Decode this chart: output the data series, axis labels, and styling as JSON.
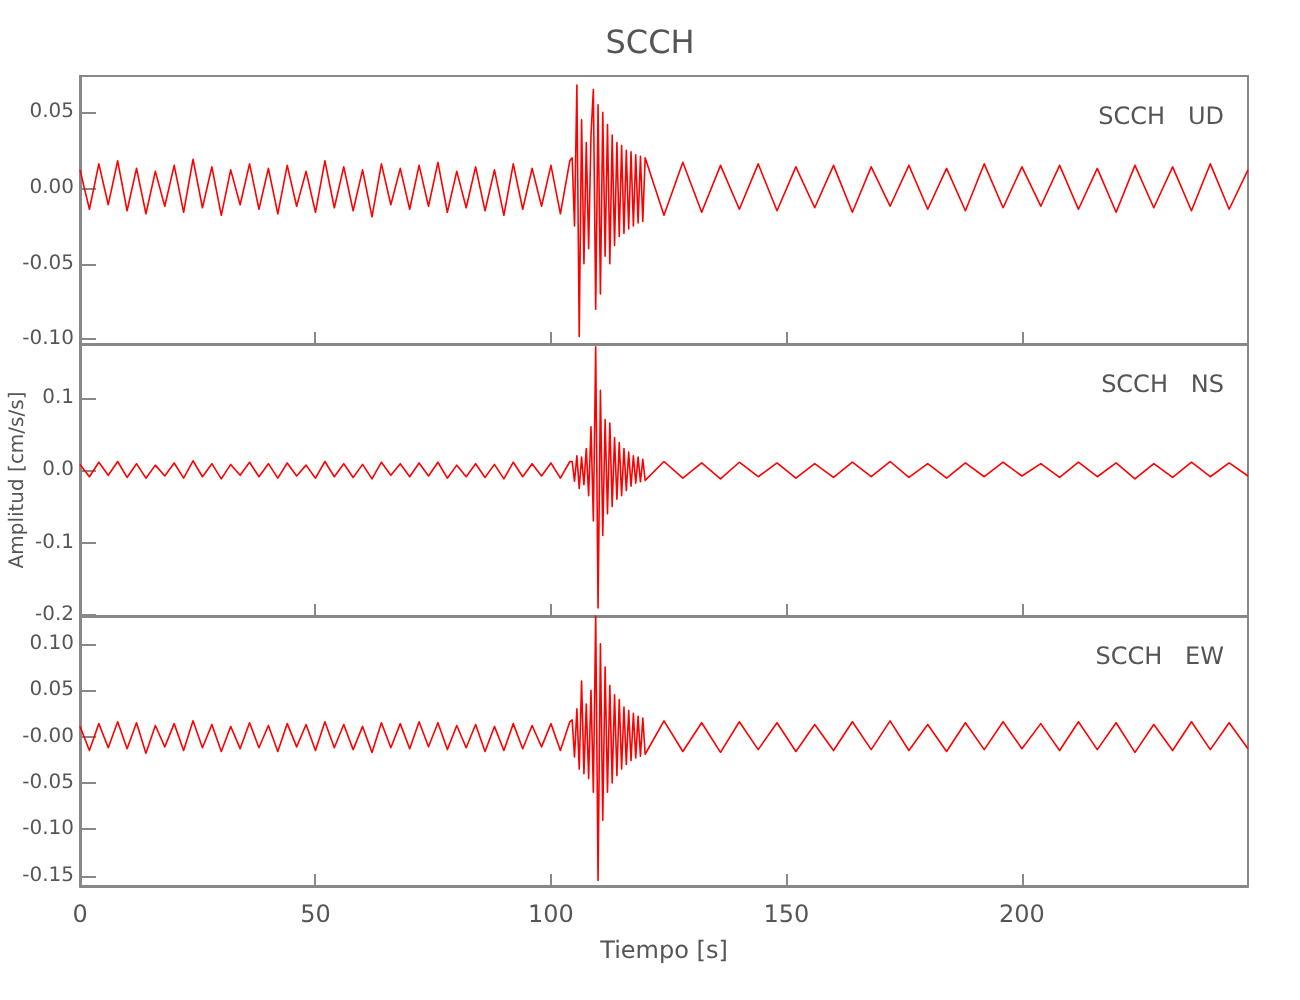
{
  "chart_data": [
    {
      "type": "line",
      "title": "SCCH",
      "annotations": [
        "SCCH   UD"
      ],
      "tick_labels": "y",
      "marker": "none",
      "grid": false,
      "xlim": [
        0,
        248
      ],
      "xticks": [
        0,
        50,
        100,
        150,
        200
      ],
      "ylim": [
        -0.103,
        0.074
      ],
      "yticks": [
        {
          "value": 0.05,
          "label": "0.05"
        },
        {
          "value": 0,
          "label": "0.00"
        },
        {
          "value": -0.05,
          "label": "-0.05"
        },
        {
          "value": -0.1,
          "label": "-0.10"
        }
      ],
      "x": [
        0,
        2,
        4,
        6,
        8,
        10,
        12,
        14,
        16,
        18,
        20,
        22,
        24,
        26,
        28,
        30,
        32,
        34,
        36,
        38,
        40,
        42,
        44,
        46,
        48,
        50,
        52,
        54,
        56,
        58,
        60,
        62,
        64,
        66,
        68,
        70,
        72,
        74,
        76,
        78,
        80,
        82,
        84,
        86,
        88,
        90,
        92,
        94,
        96,
        98,
        100,
        102,
        104,
        104.5,
        105,
        105.5,
        106,
        106.5,
        107,
        107.5,
        108,
        108.5,
        109,
        109.5,
        110,
        110.5,
        111,
        111.5,
        112,
        112.5,
        113,
        113.5,
        114,
        114.5,
        115,
        115.5,
        116,
        116.5,
        117,
        117.5,
        118,
        118.5,
        119,
        119.5,
        120,
        124,
        128,
        132,
        136,
        140,
        144,
        148,
        152,
        156,
        160,
        164,
        168,
        172,
        176,
        180,
        184,
        188,
        192,
        196,
        200,
        204,
        208,
        212,
        216,
        220,
        224,
        228,
        232,
        236,
        240,
        244,
        248
      ],
      "series": [
        {
          "color": "#ff0000",
          "values": [
            0.012,
            -0.014,
            0.016,
            -0.011,
            0.018,
            -0.015,
            0.013,
            -0.017,
            0.011,
            -0.012,
            0.015,
            -0.016,
            0.019,
            -0.013,
            0.014,
            -0.018,
            0.012,
            -0.011,
            0.016,
            -0.014,
            0.013,
            -0.017,
            0.015,
            -0.012,
            0.011,
            -0.016,
            0.018,
            -0.013,
            0.014,
            -0.015,
            0.012,
            -0.019,
            0.016,
            -0.011,
            0.013,
            -0.014,
            0.015,
            -0.012,
            0.017,
            -0.016,
            0.011,
            -0.013,
            0.014,
            -0.015,
            0.012,
            -0.018,
            0.016,
            -0.014,
            0.013,
            -0.012,
            0.015,
            -0.017,
            0.018,
            0.02,
            -0.025,
            0.068,
            -0.098,
            0.045,
            -0.05,
            0.03,
            -0.04,
            0.035,
            0.065,
            -0.08,
            0.055,
            -0.07,
            0.05,
            -0.045,
            0.042,
            -0.05,
            0.035,
            -0.038,
            0.03,
            -0.032,
            0.028,
            -0.03,
            0.025,
            -0.027,
            0.024,
            -0.025,
            0.022,
            -0.023,
            0.021,
            -0.022,
            0.02,
            -0.018,
            0.017,
            -0.016,
            0.015,
            -0.014,
            0.016,
            -0.015,
            0.014,
            -0.013,
            0.015,
            -0.016,
            0.014,
            -0.012,
            0.015,
            -0.014,
            0.013,
            -0.015,
            0.016,
            -0.013,
            0.014,
            -0.012,
            0.015,
            -0.014,
            0.013,
            -0.016,
            0.015,
            -0.013,
            0.014,
            -0.015,
            0.016,
            -0.014,
            0.012
          ]
        }
      ]
    },
    {
      "type": "line",
      "ylabel": "Amplitud [cm/s/s]",
      "annotations": [
        "SCCH   NS"
      ],
      "tick_labels": "y",
      "marker": "none",
      "grid": false,
      "xlim": [
        0,
        248
      ],
      "xticks": [
        0,
        50,
        100,
        150,
        200
      ],
      "ylim": [
        -0.201,
        0.174
      ],
      "yticks": [
        {
          "value": 0.1,
          "label": "0.1"
        },
        {
          "value": 0,
          "label": "0.0"
        },
        {
          "value": -0.1,
          "label": "-0.1"
        },
        {
          "value": -0.2,
          "label": "-0.2"
        }
      ],
      "x": [
        0,
        2,
        4,
        6,
        8,
        10,
        12,
        14,
        16,
        18,
        20,
        22,
        24,
        26,
        28,
        30,
        32,
        34,
        36,
        38,
        40,
        42,
        44,
        46,
        48,
        50,
        52,
        54,
        56,
        58,
        60,
        62,
        64,
        66,
        68,
        70,
        72,
        74,
        76,
        78,
        80,
        82,
        84,
        86,
        88,
        90,
        92,
        94,
        96,
        98,
        100,
        102,
        104,
        104.5,
        105,
        105.5,
        106,
        106.5,
        107,
        107.5,
        108,
        108.5,
        109,
        109.5,
        110,
        110.5,
        111,
        111.5,
        112,
        112.5,
        113,
        113.5,
        114,
        114.5,
        115,
        115.5,
        116,
        116.5,
        117,
        117.5,
        118,
        118.5,
        119,
        119.5,
        120,
        124,
        128,
        132,
        136,
        140,
        144,
        148,
        152,
        156,
        160,
        164,
        168,
        172,
        176,
        180,
        184,
        188,
        192,
        196,
        200,
        204,
        208,
        212,
        216,
        220,
        224,
        228,
        232,
        236,
        240,
        244,
        248
      ],
      "series": [
        {
          "color": "#ff0000",
          "values": [
            0.008,
            -0.009,
            0.011,
            -0.007,
            0.012,
            -0.01,
            0.009,
            -0.011,
            0.007,
            -0.008,
            0.01,
            -0.011,
            0.013,
            -0.009,
            0.009,
            -0.012,
            0.008,
            -0.007,
            0.011,
            -0.009,
            0.009,
            -0.011,
            0.01,
            -0.008,
            0.007,
            -0.011,
            0.012,
            -0.009,
            0.009,
            -0.01,
            0.008,
            -0.012,
            0.011,
            -0.007,
            0.009,
            -0.009,
            0.01,
            -0.008,
            0.011,
            -0.011,
            0.007,
            -0.009,
            0.009,
            -0.01,
            0.008,
            -0.012,
            0.011,
            -0.009,
            0.009,
            -0.008,
            0.01,
            -0.011,
            0.012,
            0.012,
            -0.015,
            0.02,
            -0.025,
            0.018,
            -0.02,
            0.03,
            -0.035,
            0.06,
            -0.07,
            0.17,
            -0.19,
            0.11,
            -0.09,
            0.07,
            -0.06,
            0.065,
            -0.05,
            0.045,
            -0.04,
            0.038,
            -0.035,
            0.03,
            -0.028,
            0.025,
            -0.022,
            0.02,
            -0.018,
            0.018,
            -0.016,
            0.015,
            -0.014,
            0.012,
            -0.011,
            0.01,
            -0.012,
            0.011,
            -0.009,
            0.01,
            -0.011,
            0.009,
            -0.01,
            0.011,
            -0.009,
            0.012,
            -0.01,
            0.009,
            -0.011,
            0.01,
            -0.009,
            0.011,
            -0.008,
            0.009,
            -0.01,
            0.011,
            -0.009,
            0.01,
            -0.012,
            0.009,
            -0.01,
            0.011,
            -0.009,
            0.01,
            -0.008
          ]
        }
      ]
    },
    {
      "type": "line",
      "xlabel": "Tiempo [s]",
      "annotations": [
        "SCCH   EW"
      ],
      "marker": "none",
      "grid": false,
      "xlim": [
        0,
        248
      ],
      "xticks": [
        0,
        50,
        100,
        150,
        200
      ],
      "ylim": [
        -0.161,
        0.13
      ],
      "yticks": [
        {
          "value": 0.1,
          "label": "0.10"
        },
        {
          "value": 0.05,
          "label": "0.05"
        },
        {
          "value": 0,
          "label": "-0.00"
        },
        {
          "value": -0.05,
          "label": "-0.05"
        },
        {
          "value": -0.1,
          "label": "-0.10"
        },
        {
          "value": -0.15,
          "label": "-0.15"
        }
      ],
      "x": [
        0,
        2,
        4,
        6,
        8,
        10,
        12,
        14,
        16,
        18,
        20,
        22,
        24,
        26,
        28,
        30,
        32,
        34,
        36,
        38,
        40,
        42,
        44,
        46,
        48,
        50,
        52,
        54,
        56,
        58,
        60,
        62,
        64,
        66,
        68,
        70,
        72,
        74,
        76,
        78,
        80,
        82,
        84,
        86,
        88,
        90,
        92,
        94,
        96,
        98,
        100,
        102,
        104,
        104.5,
        105,
        105.5,
        106,
        106.5,
        107,
        107.5,
        108,
        108.5,
        109,
        109.5,
        110,
        110.5,
        111,
        111.5,
        112,
        112.5,
        113,
        113.5,
        114,
        114.5,
        115,
        115.5,
        116,
        116.5,
        117,
        117.5,
        118,
        118.5,
        119,
        119.5,
        120,
        124,
        128,
        132,
        136,
        140,
        144,
        148,
        152,
        156,
        160,
        164,
        168,
        172,
        176,
        180,
        184,
        188,
        192,
        196,
        200,
        204,
        208,
        212,
        216,
        220,
        224,
        228,
        232,
        236,
        240,
        244,
        248
      ],
      "series": [
        {
          "color": "#ff0000",
          "values": [
            0.011,
            -0.015,
            0.014,
            -0.012,
            0.016,
            -0.013,
            0.015,
            -0.018,
            0.012,
            -0.011,
            0.014,
            -0.015,
            0.017,
            -0.012,
            0.013,
            -0.016,
            0.011,
            -0.013,
            0.015,
            -0.012,
            0.012,
            -0.016,
            0.014,
            -0.011,
            0.013,
            -0.015,
            0.016,
            -0.012,
            0.013,
            -0.014,
            0.011,
            -0.017,
            0.015,
            -0.012,
            0.014,
            -0.013,
            0.016,
            -0.011,
            0.015,
            -0.014,
            0.012,
            -0.012,
            0.013,
            -0.016,
            0.011,
            -0.015,
            0.014,
            -0.013,
            0.012,
            -0.011,
            0.014,
            -0.015,
            0.016,
            0.018,
            -0.022,
            0.03,
            -0.035,
            0.06,
            -0.04,
            0.035,
            -0.045,
            0.05,
            -0.06,
            0.13,
            -0.155,
            0.1,
            -0.09,
            0.075,
            -0.06,
            0.055,
            -0.05,
            0.045,
            -0.042,
            0.04,
            -0.035,
            0.032,
            -0.03,
            0.028,
            -0.026,
            0.025,
            -0.023,
            0.022,
            -0.021,
            0.02,
            -0.019,
            0.017,
            -0.016,
            0.015,
            -0.017,
            0.016,
            -0.014,
            0.015,
            -0.016,
            0.013,
            -0.015,
            0.016,
            -0.014,
            0.017,
            -0.015,
            0.013,
            -0.016,
            0.015,
            -0.014,
            0.016,
            -0.013,
            0.014,
            -0.015,
            0.016,
            -0.014,
            0.015,
            -0.017,
            0.013,
            -0.015,
            0.016,
            -0.014,
            0.015,
            -0.013
          ]
        }
      ]
    }
  ]
}
